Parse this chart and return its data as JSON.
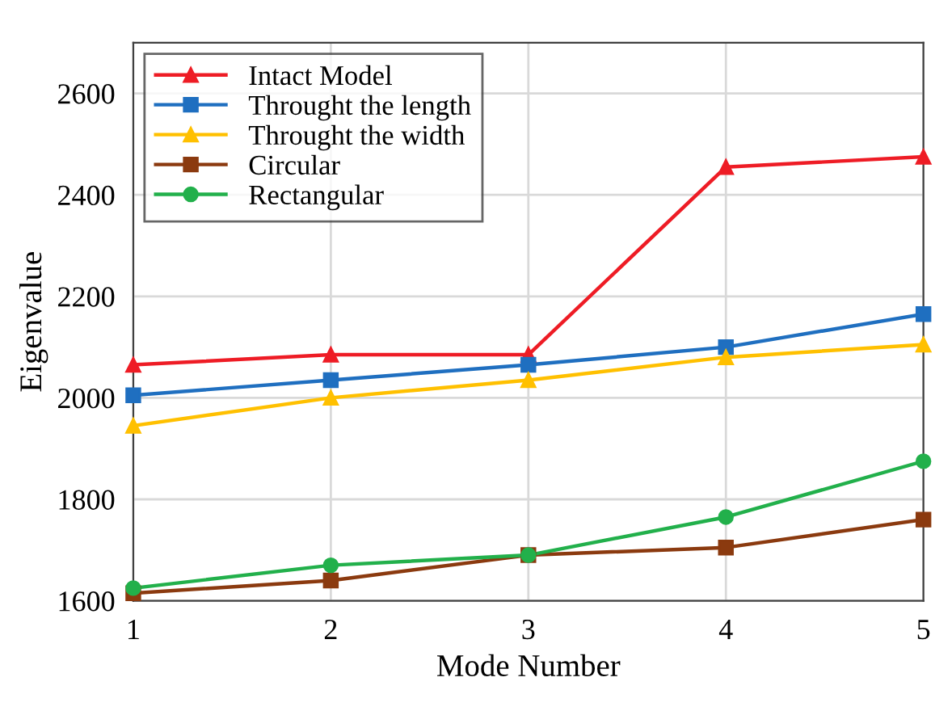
{
  "chart_data": {
    "type": "line",
    "xlabel": "Mode Number",
    "ylabel": "Eigenvalue",
    "x": [
      1,
      2,
      3,
      4,
      5
    ],
    "series": [
      {
        "name": "Intact Model",
        "color": "#ee1c25",
        "marker": "triangle",
        "values": [
          2065,
          2085,
          2085,
          2455,
          2475
        ]
      },
      {
        "name": "Throught the length",
        "color": "#1f6fc0",
        "marker": "square",
        "values": [
          2005,
          2035,
          2065,
          2100,
          2165
        ]
      },
      {
        "name": "Throught the width",
        "color": "#ffc000",
        "marker": "triangle",
        "values": [
          1945,
          2000,
          2035,
          2080,
          2105
        ]
      },
      {
        "name": "Circular",
        "color": "#8b3a0f",
        "marker": "square",
        "values": [
          1615,
          1640,
          1690,
          1705,
          1760
        ]
      },
      {
        "name": "Rectangular",
        "color": "#22b04b",
        "marker": "circle",
        "values": [
          1625,
          1670,
          1690,
          1765,
          1875
        ]
      }
    ],
    "xlim": [
      1,
      5
    ],
    "xticks": [
      1,
      2,
      3,
      4,
      5
    ],
    "ylim": [
      1600,
      2700
    ],
    "yticks": [
      1600,
      1800,
      2000,
      2200,
      2400,
      2600
    ],
    "grid": true,
    "legend": "top left",
    "line_style": "solid"
  }
}
